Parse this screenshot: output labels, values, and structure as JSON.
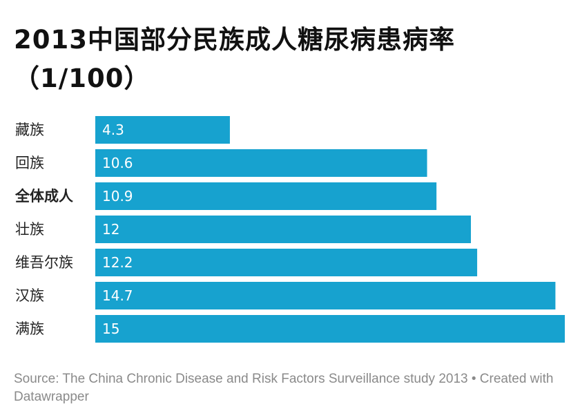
{
  "chart_data": {
    "type": "bar",
    "orientation": "horizontal",
    "title": "2013中国部分民族成人糖尿病患病率（1/100）",
    "categories": [
      "藏族",
      "回族",
      "全体成人",
      "壮族",
      "维吾尔族",
      "汉族",
      "满族"
    ],
    "values": [
      4.3,
      10.6,
      10.9,
      12,
      12.2,
      14.7,
      15
    ],
    "value_labels": [
      "4.3",
      "10.6",
      "10.9",
      "12",
      "12.2",
      "14.7",
      "15"
    ],
    "highlighted_category": "全体成人",
    "xlim": [
      0,
      15
    ],
    "bar_color": "#17a2cf",
    "grid": false,
    "legend": "none"
  },
  "footer": {
    "source": "Source: The China Chronic Disease and Risk Factors Surveillance study 2013 • Created with Datawrapper"
  }
}
